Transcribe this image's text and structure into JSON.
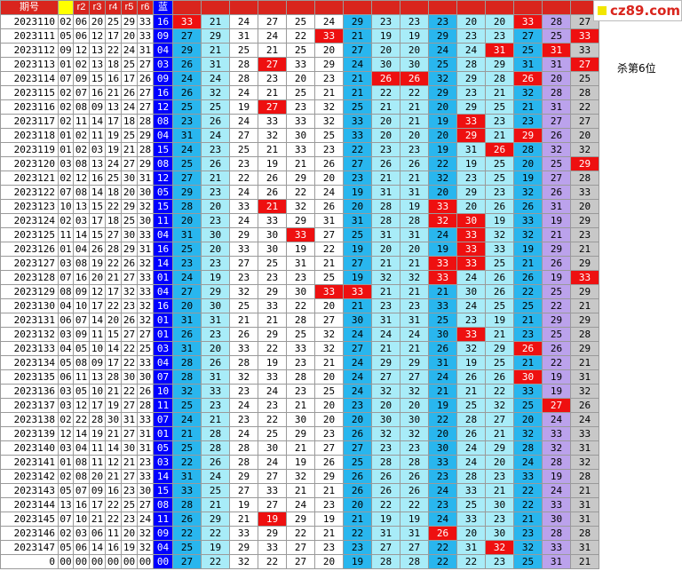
{
  "logo": {
    "text": "cz89.com"
  },
  "note": "杀第6位",
  "headers": [
    "期号",
    "",
    "r2",
    "r3",
    "r4",
    "r5",
    "r6",
    "蓝"
  ],
  "hot_color": "#ee1010",
  "column_colors": [
    "#29b6ee",
    "#a8ecf8",
    "#ffffff",
    "#29b6ee",
    "#a8ecf8",
    "#29b6ee",
    "#a8ecf8",
    "#bba2ec",
    "#c8c8c8"
  ],
  "rows": [
    {
      "id": "2023110",
      "red": [
        "02",
        "06",
        "20",
        "25",
        "29",
        "33"
      ],
      "blue": "16",
      "vals": [
        "33",
        "21",
        "24",
        "27",
        "25",
        "24",
        "29",
        "23",
        "23",
        "23",
        "20",
        "20",
        "33",
        "28",
        "27"
      ]
    },
    {
      "id": "2023111",
      "red": [
        "05",
        "06",
        "12",
        "17",
        "20",
        "33"
      ],
      "blue": "09",
      "vals": [
        "27",
        "29",
        "31",
        "24",
        "22",
        "33",
        "21",
        "19",
        "19",
        "29",
        "23",
        "23",
        "27",
        "25",
        "33"
      ]
    },
    {
      "id": "2023112",
      "red": [
        "09",
        "12",
        "13",
        "22",
        "24",
        "31"
      ],
      "blue": "04",
      "vals": [
        "29",
        "21",
        "25",
        "21",
        "25",
        "20",
        "27",
        "20",
        "20",
        "24",
        "24",
        "31",
        "25",
        "31",
        "33"
      ]
    },
    {
      "id": "2023113",
      "red": [
        "01",
        "02",
        "13",
        "18",
        "25",
        "27"
      ],
      "blue": "03",
      "vals": [
        "26",
        "31",
        "28",
        "27",
        "33",
        "29",
        "24",
        "30",
        "30",
        "25",
        "28",
        "29",
        "31",
        "31",
        "27"
      ]
    },
    {
      "id": "2023114",
      "red": [
        "07",
        "09",
        "15",
        "16",
        "17",
        "26"
      ],
      "blue": "09",
      "vals": [
        "24",
        "24",
        "28",
        "23",
        "20",
        "23",
        "21",
        "26",
        "26",
        "32",
        "29",
        "28",
        "26",
        "20",
        "25"
      ]
    },
    {
      "id": "2023115",
      "red": [
        "02",
        "07",
        "16",
        "21",
        "26",
        "27"
      ],
      "blue": "16",
      "vals": [
        "26",
        "32",
        "24",
        "21",
        "25",
        "21",
        "21",
        "22",
        "22",
        "29",
        "23",
        "21",
        "32",
        "28",
        "28"
      ]
    },
    {
      "id": "2023116",
      "red": [
        "02",
        "08",
        "09",
        "13",
        "24",
        "27"
      ],
      "blue": "12",
      "vals": [
        "25",
        "25",
        "19",
        "27",
        "23",
        "32",
        "25",
        "21",
        "21",
        "20",
        "29",
        "25",
        "21",
        "31",
        "22"
      ]
    },
    {
      "id": "2023117",
      "red": [
        "02",
        "11",
        "14",
        "17",
        "18",
        "28"
      ],
      "blue": "08",
      "vals": [
        "23",
        "26",
        "24",
        "33",
        "33",
        "32",
        "33",
        "20",
        "21",
        "19",
        "33",
        "23",
        "23",
        "27",
        "27"
      ]
    },
    {
      "id": "2023118",
      "red": [
        "01",
        "02",
        "11",
        "19",
        "25",
        "29"
      ],
      "blue": "04",
      "vals": [
        "31",
        "24",
        "27",
        "32",
        "30",
        "25",
        "33",
        "20",
        "20",
        "20",
        "29",
        "21",
        "29",
        "26",
        "20"
      ]
    },
    {
      "id": "2023119",
      "red": [
        "01",
        "02",
        "03",
        "19",
        "21",
        "28"
      ],
      "blue": "15",
      "vals": [
        "24",
        "23",
        "25",
        "21",
        "33",
        "23",
        "22",
        "23",
        "23",
        "19",
        "31",
        "26",
        "28",
        "32",
        "32"
      ]
    },
    {
      "id": "2023120",
      "red": [
        "03",
        "08",
        "13",
        "24",
        "27",
        "29"
      ],
      "blue": "08",
      "vals": [
        "25",
        "26",
        "23",
        "19",
        "21",
        "26",
        "27",
        "26",
        "26",
        "22",
        "19",
        "25",
        "20",
        "25",
        "29"
      ]
    },
    {
      "id": "2023121",
      "red": [
        "02",
        "12",
        "16",
        "25",
        "30",
        "31"
      ],
      "blue": "12",
      "vals": [
        "27",
        "21",
        "22",
        "26",
        "29",
        "20",
        "23",
        "21",
        "21",
        "32",
        "23",
        "25",
        "19",
        "27",
        "28"
      ]
    },
    {
      "id": "2023122",
      "red": [
        "07",
        "08",
        "14",
        "18",
        "20",
        "30"
      ],
      "blue": "05",
      "vals": [
        "29",
        "23",
        "24",
        "26",
        "22",
        "24",
        "19",
        "31",
        "31",
        "20",
        "29",
        "23",
        "32",
        "26",
        "33"
      ]
    },
    {
      "id": "2023123",
      "red": [
        "10",
        "13",
        "15",
        "22",
        "29",
        "32"
      ],
      "blue": "15",
      "vals": [
        "28",
        "20",
        "33",
        "21",
        "32",
        "26",
        "20",
        "28",
        "19",
        "33",
        "20",
        "26",
        "26",
        "31",
        "20"
      ]
    },
    {
      "id": "2023124",
      "red": [
        "02",
        "03",
        "17",
        "18",
        "25",
        "30"
      ],
      "blue": "11",
      "vals": [
        "20",
        "23",
        "24",
        "33",
        "29",
        "31",
        "31",
        "28",
        "28",
        "32",
        "30",
        "19",
        "33",
        "19",
        "29"
      ]
    },
    {
      "id": "2023125",
      "red": [
        "11",
        "14",
        "15",
        "27",
        "30",
        "33"
      ],
      "blue": "04",
      "vals": [
        "31",
        "30",
        "29",
        "30",
        "33",
        "27",
        "25",
        "31",
        "31",
        "24",
        "33",
        "32",
        "32",
        "21",
        "23"
      ]
    },
    {
      "id": "2023126",
      "red": [
        "01",
        "04",
        "26",
        "28",
        "29",
        "31"
      ],
      "blue": "16",
      "vals": [
        "25",
        "20",
        "33",
        "30",
        "19",
        "22",
        "19",
        "20",
        "20",
        "19",
        "33",
        "33",
        "19",
        "29",
        "21"
      ]
    },
    {
      "id": "2023127",
      "red": [
        "03",
        "08",
        "19",
        "22",
        "26",
        "32"
      ],
      "blue": "14",
      "vals": [
        "23",
        "23",
        "27",
        "25",
        "31",
        "21",
        "27",
        "21",
        "21",
        "33",
        "33",
        "25",
        "21",
        "26",
        "29"
      ]
    },
    {
      "id": "2023128",
      "red": [
        "07",
        "16",
        "20",
        "21",
        "27",
        "33"
      ],
      "blue": "01",
      "vals": [
        "24",
        "19",
        "23",
        "23",
        "23",
        "25",
        "19",
        "32",
        "32",
        "33",
        "24",
        "26",
        "26",
        "19",
        "33"
      ]
    },
    {
      "id": "2023129",
      "red": [
        "08",
        "09",
        "12",
        "17",
        "32",
        "33"
      ],
      "blue": "04",
      "vals": [
        "27",
        "29",
        "32",
        "29",
        "30",
        "33",
        "33",
        "21",
        "21",
        "21",
        "30",
        "26",
        "22",
        "25",
        "29"
      ]
    },
    {
      "id": "2023130",
      "red": [
        "04",
        "10",
        "17",
        "22",
        "23",
        "32"
      ],
      "blue": "16",
      "vals": [
        "20",
        "30",
        "25",
        "33",
        "22",
        "20",
        "21",
        "23",
        "23",
        "33",
        "24",
        "25",
        "25",
        "22",
        "21"
      ]
    },
    {
      "id": "2023131",
      "red": [
        "06",
        "07",
        "14",
        "20",
        "26",
        "32"
      ],
      "blue": "01",
      "vals": [
        "31",
        "31",
        "21",
        "21",
        "28",
        "27",
        "30",
        "31",
        "31",
        "25",
        "23",
        "19",
        "21",
        "29",
        "29"
      ]
    },
    {
      "id": "2023132",
      "red": [
        "03",
        "09",
        "11",
        "15",
        "27",
        "27"
      ],
      "blue": "01",
      "vals": [
        "26",
        "23",
        "26",
        "29",
        "25",
        "32",
        "24",
        "24",
        "24",
        "30",
        "33",
        "21",
        "23",
        "25",
        "28"
      ]
    },
    {
      "id": "2023133",
      "red": [
        "04",
        "05",
        "10",
        "14",
        "22",
        "25"
      ],
      "blue": "03",
      "vals": [
        "31",
        "20",
        "33",
        "22",
        "33",
        "32",
        "27",
        "21",
        "21",
        "26",
        "32",
        "29",
        "26",
        "26",
        "29"
      ]
    },
    {
      "id": "2023134",
      "red": [
        "05",
        "08",
        "09",
        "17",
        "22",
        "33"
      ],
      "blue": "04",
      "vals": [
        "28",
        "26",
        "28",
        "19",
        "23",
        "21",
        "24",
        "29",
        "29",
        "31",
        "19",
        "25",
        "21",
        "22",
        "21"
      ]
    },
    {
      "id": "2023135",
      "red": [
        "06",
        "11",
        "13",
        "28",
        "30",
        "30"
      ],
      "blue": "07",
      "vals": [
        "28",
        "31",
        "32",
        "33",
        "28",
        "20",
        "24",
        "27",
        "27",
        "24",
        "26",
        "26",
        "30",
        "19",
        "31"
      ]
    },
    {
      "id": "2023136",
      "red": [
        "03",
        "05",
        "10",
        "21",
        "22",
        "26"
      ],
      "blue": "10",
      "vals": [
        "32",
        "33",
        "23",
        "24",
        "23",
        "25",
        "24",
        "32",
        "32",
        "21",
        "21",
        "22",
        "33",
        "19",
        "32"
      ]
    },
    {
      "id": "2023137",
      "red": [
        "03",
        "12",
        "17",
        "19",
        "27",
        "28"
      ],
      "blue": "11",
      "vals": [
        "25",
        "23",
        "24",
        "23",
        "21",
        "20",
        "23",
        "20",
        "20",
        "19",
        "25",
        "32",
        "25",
        "27",
        "26"
      ]
    },
    {
      "id": "2023138",
      "red": [
        "02",
        "22",
        "28",
        "30",
        "31",
        "33"
      ],
      "blue": "07",
      "vals": [
        "24",
        "21",
        "23",
        "22",
        "30",
        "20",
        "20",
        "30",
        "30",
        "22",
        "28",
        "27",
        "20",
        "24",
        "24"
      ]
    },
    {
      "id": "2023139",
      "red": [
        "12",
        "14",
        "19",
        "21",
        "27",
        "31"
      ],
      "blue": "01",
      "vals": [
        "21",
        "28",
        "24",
        "25",
        "29",
        "23",
        "26",
        "32",
        "32",
        "20",
        "26",
        "21",
        "32",
        "33",
        "33"
      ]
    },
    {
      "id": "2023140",
      "red": [
        "03",
        "04",
        "11",
        "14",
        "30",
        "31"
      ],
      "blue": "05",
      "vals": [
        "25",
        "28",
        "28",
        "30",
        "21",
        "27",
        "27",
        "23",
        "23",
        "30",
        "24",
        "29",
        "28",
        "32",
        "31"
      ]
    },
    {
      "id": "2023141",
      "red": [
        "01",
        "08",
        "11",
        "12",
        "21",
        "23"
      ],
      "blue": "03",
      "vals": [
        "22",
        "26",
        "28",
        "24",
        "19",
        "26",
        "25",
        "28",
        "28",
        "33",
        "24",
        "20",
        "24",
        "28",
        "32"
      ]
    },
    {
      "id": "2023142",
      "red": [
        "02",
        "08",
        "20",
        "21",
        "27",
        "33"
      ],
      "blue": "14",
      "vals": [
        "31",
        "24",
        "29",
        "27",
        "32",
        "29",
        "26",
        "26",
        "26",
        "23",
        "28",
        "23",
        "33",
        "19",
        "28"
      ]
    },
    {
      "id": "2023143",
      "red": [
        "05",
        "07",
        "09",
        "16",
        "23",
        "30"
      ],
      "blue": "15",
      "vals": [
        "33",
        "25",
        "27",
        "33",
        "21",
        "21",
        "26",
        "26",
        "26",
        "24",
        "33",
        "21",
        "22",
        "24",
        "21"
      ]
    },
    {
      "id": "2023144",
      "red": [
        "13",
        "16",
        "17",
        "22",
        "25",
        "27"
      ],
      "blue": "08",
      "vals": [
        "28",
        "21",
        "19",
        "27",
        "24",
        "23",
        "20",
        "22",
        "22",
        "23",
        "25",
        "30",
        "22",
        "33",
        "31"
      ]
    },
    {
      "id": "2023145",
      "red": [
        "07",
        "10",
        "21",
        "22",
        "23",
        "24"
      ],
      "blue": "11",
      "vals": [
        "26",
        "29",
        "21",
        "19",
        "29",
        "19",
        "21",
        "19",
        "19",
        "24",
        "33",
        "23",
        "21",
        "30",
        "31"
      ]
    },
    {
      "id": "2023146",
      "red": [
        "02",
        "03",
        "06",
        "11",
        "20",
        "32"
      ],
      "blue": "09",
      "vals": [
        "22",
        "22",
        "33",
        "29",
        "22",
        "21",
        "22",
        "31",
        "31",
        "26",
        "20",
        "30",
        "23",
        "28",
        "28"
      ]
    },
    {
      "id": "2023147",
      "red": [
        "05",
        "06",
        "14",
        "16",
        "19",
        "32"
      ],
      "blue": "04",
      "vals": [
        "25",
        "19",
        "29",
        "33",
        "27",
        "23",
        "23",
        "27",
        "27",
        "22",
        "31",
        "32",
        "32",
        "33",
        "31"
      ]
    },
    {
      "id": "0",
      "red": [
        "00",
        "00",
        "00",
        "00",
        "00",
        "00"
      ],
      "blue": "00",
      "vals": [
        "27",
        "22",
        "32",
        "22",
        "27",
        "20",
        "19",
        "28",
        "28",
        "22",
        "22",
        "23",
        "25",
        "31",
        "21"
      ]
    }
  ],
  "hot": [
    [
      0,
      0
    ],
    [
      0,
      12
    ],
    [
      1,
      5
    ],
    [
      1,
      14
    ],
    [
      2,
      11
    ],
    [
      2,
      13
    ],
    [
      3,
      3
    ],
    [
      3,
      14
    ],
    [
      4,
      7
    ],
    [
      4,
      8
    ],
    [
      4,
      12
    ],
    [
      6,
      3
    ],
    [
      7,
      10
    ],
    [
      8,
      10
    ],
    [
      8,
      12
    ],
    [
      9,
      11
    ],
    [
      10,
      14
    ],
    [
      13,
      3
    ],
    [
      13,
      9
    ],
    [
      14,
      9
    ],
    [
      14,
      10
    ],
    [
      15,
      4
    ],
    [
      15,
      10
    ],
    [
      16,
      10
    ],
    [
      17,
      9
    ],
    [
      17,
      10
    ],
    [
      18,
      9
    ],
    [
      18,
      14
    ],
    [
      19,
      5
    ],
    [
      19,
      6
    ],
    [
      22,
      10
    ],
    [
      23,
      12
    ],
    [
      25,
      12
    ],
    [
      27,
      13
    ],
    [
      35,
      3
    ],
    [
      36,
      9
    ],
    [
      37,
      11
    ]
  ]
}
